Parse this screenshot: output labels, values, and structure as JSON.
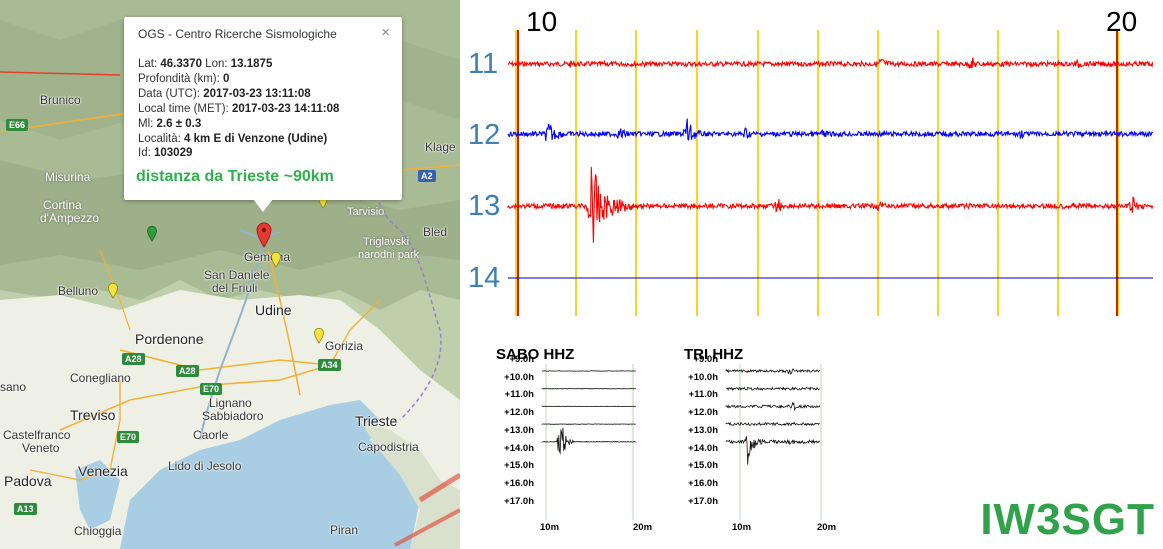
{
  "map": {
    "places": [
      {
        "name": "Brunico",
        "cls": ""
      },
      {
        "name": "Misurina",
        "cls": "white"
      },
      {
        "name": "Cortina",
        "cls": "white"
      },
      {
        "name": "d'Ampezzo",
        "cls": "white"
      },
      {
        "name": "Klage",
        "cls": ""
      },
      {
        "name": "Tarvisio",
        "cls": "white"
      },
      {
        "name": "Triglavski",
        "cls": "white"
      },
      {
        "name": "narodni park",
        "cls": "white"
      },
      {
        "name": "Bled",
        "cls": ""
      },
      {
        "name": "Gemona",
        "cls": ""
      },
      {
        "name": "San Daniele",
        "cls": ""
      },
      {
        "name": "del Friuli",
        "cls": ""
      },
      {
        "name": "Belluno",
        "cls": ""
      },
      {
        "name": "Udine",
        "cls": "big"
      },
      {
        "name": "Pordenone",
        "cls": "big"
      },
      {
        "name": "Gorizia",
        "cls": ""
      },
      {
        "name": "Conegliano",
        "cls": ""
      },
      {
        "name": "Treviso",
        "cls": "big"
      },
      {
        "name": "Lignano",
        "cls": ""
      },
      {
        "name": "Sabbiadoro",
        "cls": ""
      },
      {
        "name": "Trieste",
        "cls": "big"
      },
      {
        "name": "Castelfranco",
        "cls": ""
      },
      {
        "name": "Veneto",
        "cls": ""
      },
      {
        "name": "Caorle",
        "cls": ""
      },
      {
        "name": "Capodistria",
        "cls": ""
      },
      {
        "name": "Venezia",
        "cls": "big"
      },
      {
        "name": "Lido di Jesolo",
        "cls": ""
      },
      {
        "name": "Padova",
        "cls": "big"
      },
      {
        "name": "Chioggia",
        "cls": ""
      },
      {
        "name": "Piran",
        "cls": ""
      },
      {
        "name": "sano",
        "cls": ""
      }
    ],
    "shields": [
      {
        "label": "E66",
        "color": "green"
      },
      {
        "label": "A2",
        "color": "blue"
      },
      {
        "label": "A28",
        "color": "green"
      },
      {
        "label": "A28",
        "color": "green"
      },
      {
        "label": "E70",
        "color": "green"
      },
      {
        "label": "A34",
        "color": "green"
      },
      {
        "label": "E70",
        "color": "green"
      },
      {
        "label": "A13",
        "color": "green"
      }
    ],
    "pins": [
      {
        "color": "#e53935",
        "type": "epicenter"
      },
      {
        "color": "#f3e33a",
        "type": "station"
      },
      {
        "color": "#f3e33a",
        "type": "station"
      },
      {
        "color": "#f3e33a",
        "type": "station"
      },
      {
        "color": "#f3e33a",
        "type": "station"
      },
      {
        "color": "#2e9e3e",
        "type": "station"
      }
    ]
  },
  "info_window": {
    "title": "OGS - Centro Ricerche Sismologiche",
    "close_icon": "×",
    "lat_label": "Lat:",
    "lat_value": "46.3370",
    "lon_label": "Lon:",
    "lon_value": "13.1875",
    "depth_label": "Profondità (km):",
    "depth_value": "0",
    "utc_label": "Data (UTC):",
    "utc_value": "2017-03-23 13:11:08",
    "local_label": "Local time (MET):",
    "local_value": "2017-03-23 14:11:08",
    "ml_label": "Ml:",
    "ml_value": "2.6 ± 0.3",
    "loc_label": "Località:",
    "loc_value": "4 km E di Venzone (Udine)",
    "id_label": "Id:",
    "id_value": "103029",
    "distance_note": "distanza da Trieste ~90km"
  },
  "helicorder": {
    "x_ticks": [
      "10",
      "20"
    ],
    "rows": [
      {
        "label": "11",
        "color": "#ff0000"
      },
      {
        "label": "12",
        "color": "#0000ff"
      },
      {
        "label": "13",
        "color": "#ff0000"
      },
      {
        "label": "14",
        "color": "#0000b0"
      }
    ],
    "major_line_color": "#cc2200",
    "minor_line_color": "#ffd21f"
  },
  "panels": [
    {
      "title": "SABO HHZ",
      "rows": [
        "+9.0h",
        "+10.0h",
        "+11.0h",
        "+12.0h",
        "+13.0h",
        "+14.0h",
        "+15.0h",
        "+16.0h",
        "+17.0h"
      ],
      "x_ticks": [
        "10m",
        "20m"
      ]
    },
    {
      "title": "TRI HHZ",
      "rows": [
        "+9.0h",
        "+10.0h",
        "+11.0h",
        "+12.0h",
        "+13.0h",
        "+14.0h",
        "+15.0h",
        "+16.0h",
        "+17.0h"
      ],
      "x_ticks": [
        "10m",
        "20m"
      ]
    }
  ],
  "callsign": "IW3SGT"
}
